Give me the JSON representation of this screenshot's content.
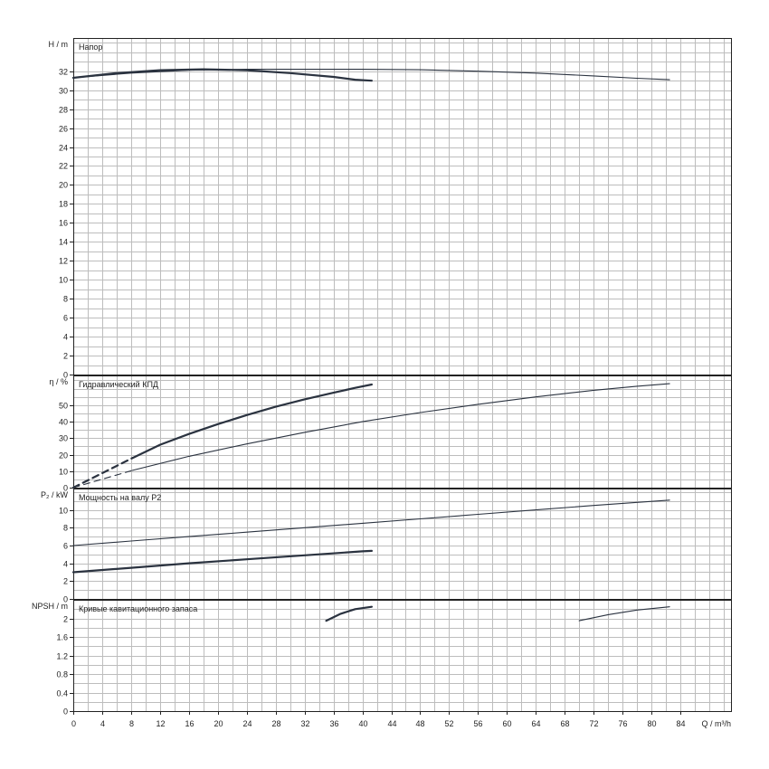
{
  "colors": {
    "curve": "#2b3340",
    "grid": "#bdbdbd",
    "frame": "#222222"
  },
  "x_axis": {
    "label": "Q / m³/h",
    "ticks": [
      0,
      4,
      8,
      12,
      16,
      20,
      24,
      28,
      32,
      36,
      40,
      44,
      48,
      52,
      56,
      60,
      64,
      68,
      72,
      76,
      80,
      84
    ]
  },
  "chart_data": [
    {
      "type": "line",
      "title": "Напор",
      "ylabel": "H / m",
      "xlabel": "Q / m³/h",
      "xlim": [
        0,
        91
      ],
      "ylim": [
        0,
        35.5
      ],
      "yticks": [
        0,
        2,
        4,
        6,
        8,
        10,
        12,
        14,
        16,
        18,
        20,
        22,
        24,
        26,
        28,
        30,
        32
      ],
      "grid": true,
      "series": [
        {
          "style": "thin",
          "x": [
            0,
            8,
            16,
            24,
            32,
            40,
            48,
            56,
            64,
            72,
            78,
            82.5
          ],
          "y": [
            31.3,
            31.8,
            32.1,
            32.2,
            32.2,
            32.2,
            32.15,
            32.0,
            31.8,
            31.5,
            31.25,
            31.1
          ]
        },
        {
          "style": "bold",
          "x": [
            0,
            6,
            12,
            18,
            24,
            30,
            36,
            39,
            41.3
          ],
          "y": [
            31.3,
            31.8,
            32.1,
            32.2,
            32.1,
            31.8,
            31.4,
            31.1,
            31.0
          ]
        }
      ]
    },
    {
      "type": "line",
      "title": "Гидравлический КПД",
      "ylabel": "η / %",
      "xlabel": "Q / m³/h",
      "xlim": [
        0,
        91
      ],
      "ylim": [
        0,
        68
      ],
      "yticks": [
        0,
        10,
        20,
        30,
        40,
        50
      ],
      "grid": true,
      "series": [
        {
          "style": "thin-dashed",
          "x": [
            0,
            8.2
          ],
          "y": [
            0,
            10.5
          ]
        },
        {
          "style": "thin",
          "x": [
            8.2,
            16,
            24,
            32,
            40,
            48,
            56,
            64,
            72,
            78,
            82.5
          ],
          "y": [
            10.5,
            19,
            26.5,
            33.5,
            40,
            45.5,
            50.5,
            55,
            59,
            61.5,
            63
          ]
        },
        {
          "style": "bold-dashed",
          "x": [
            0,
            8.2
          ],
          "y": [
            0,
            18
          ]
        },
        {
          "style": "bold",
          "x": [
            8.2,
            12,
            16,
            20,
            24,
            28,
            32,
            36,
            39,
            41.3
          ],
          "y": [
            18,
            26,
            32.5,
            38.5,
            44,
            49,
            53.5,
            57.5,
            60.5,
            62.5
          ]
        }
      ]
    },
    {
      "type": "line",
      "title": "Мощность на валу P2",
      "ylabel": "P₂ / kW",
      "xlabel": "Q / m³/h",
      "xlim": [
        0,
        91
      ],
      "ylim": [
        0,
        12.4
      ],
      "yticks": [
        0,
        2,
        4,
        6,
        8,
        10
      ],
      "grid": true,
      "series": [
        {
          "style": "thin",
          "x": [
            0,
            8,
            16,
            24,
            32,
            40,
            48,
            56,
            64,
            72,
            78,
            82.5
          ],
          "y": [
            6.0,
            6.5,
            7.0,
            7.5,
            8.0,
            8.5,
            9.0,
            9.5,
            10.0,
            10.5,
            10.85,
            11.1
          ]
        },
        {
          "style": "bold",
          "x": [
            0,
            8,
            16,
            24,
            32,
            40,
            41.3
          ],
          "y": [
            3.0,
            3.5,
            4.0,
            4.45,
            4.9,
            5.35,
            5.4
          ]
        }
      ]
    },
    {
      "type": "line",
      "title": "Кривые кавитационного запаса",
      "ylabel": "NPSH / m",
      "xlabel": "Q / m³/h",
      "xlim": [
        0,
        91
      ],
      "ylim": [
        0,
        2.4
      ],
      "yticks": [
        0,
        0.4,
        0.8,
        1.2,
        1.6,
        2
      ],
      "grid": true,
      "series": [
        {
          "style": "bold",
          "x": [
            35,
            37,
            39,
            41.3
          ],
          "y": [
            1.95,
            2.1,
            2.2,
            2.25
          ]
        },
        {
          "style": "thin",
          "x": [
            70,
            74,
            78,
            82.5
          ],
          "y": [
            1.95,
            2.08,
            2.18,
            2.25
          ]
        }
      ]
    }
  ]
}
